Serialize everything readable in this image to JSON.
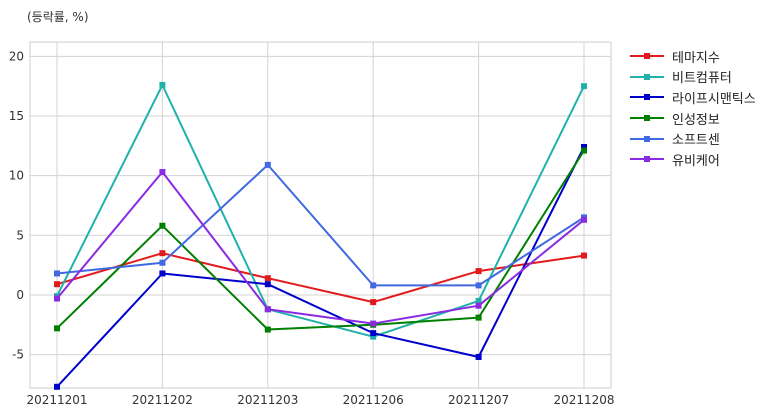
{
  "chart_data": {
    "type": "line",
    "unit_label": "(등락률, %)",
    "categories": [
      "20211201",
      "20211202",
      "20211203",
      "20211206",
      "20211207",
      "20211208"
    ],
    "ylim": [
      -7.8,
      21.2
    ],
    "yticks": [
      -5,
      0,
      5,
      10,
      15,
      20
    ],
    "grid": true,
    "legend_position": "right",
    "series": [
      {
        "name": "테마지수",
        "color": "#e31a1c",
        "values": [
          0.9,
          3.5,
          1.4,
          -0.6,
          2.0,
          3.3
        ]
      },
      {
        "name": "비트컴퓨터",
        "color": "#20b2aa",
        "values": [
          -0.1,
          17.6,
          -1.2,
          -3.5,
          -0.5,
          17.5
        ]
      },
      {
        "name": "라이프시맨틱스",
        "color": "#0000cd",
        "values": [
          -7.7,
          1.8,
          0.9,
          -3.2,
          -5.2,
          12.4
        ]
      },
      {
        "name": "인성정보",
        "color": "#008000",
        "values": [
          -2.8,
          5.8,
          -2.9,
          -2.5,
          -1.9,
          12.1
        ]
      },
      {
        "name": "소프트센",
        "color": "#4169e1",
        "values": [
          1.8,
          2.7,
          10.9,
          0.8,
          0.8,
          6.5
        ]
      },
      {
        "name": "유비케어",
        "color": "#8a2be2",
        "values": [
          -0.3,
          10.3,
          -1.2,
          -2.4,
          -0.9,
          6.3
        ]
      }
    ]
  }
}
